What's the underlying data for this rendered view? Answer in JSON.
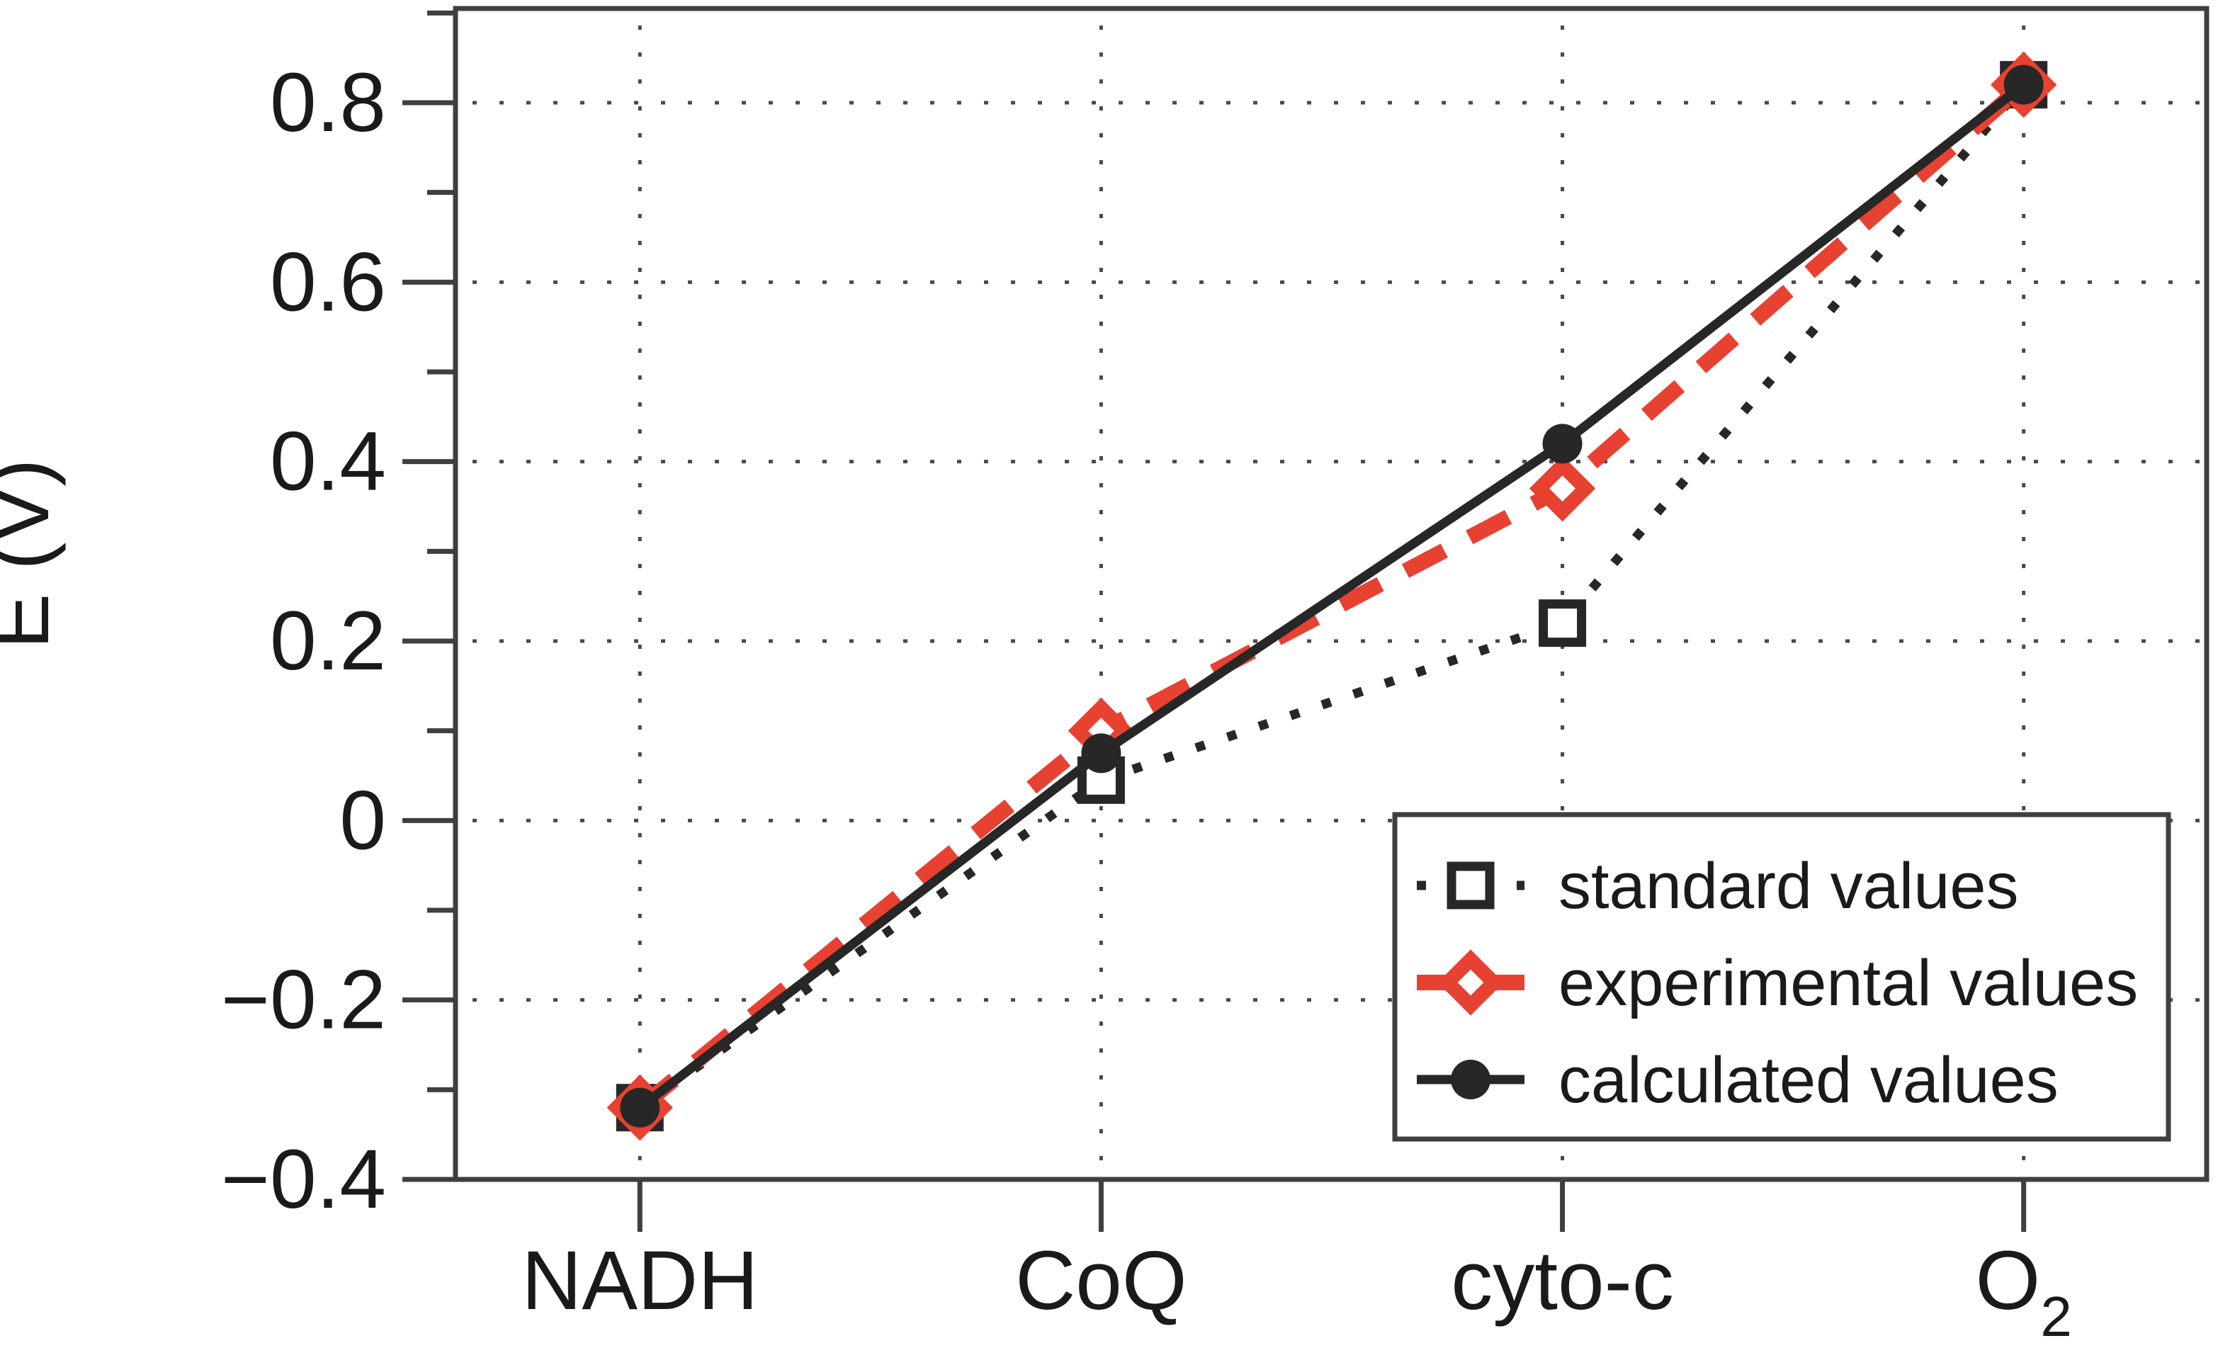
{
  "chart_data": {
    "type": "line",
    "title": "",
    "ylabel": "E (V)",
    "xlabel": "",
    "categories": [
      "NADH",
      "CoQ",
      "cyto-c",
      "O2"
    ],
    "categories_display": [
      {
        "text": "NADH",
        "sub": ""
      },
      {
        "text": "CoQ",
        "sub": ""
      },
      {
        "text": "cyto-c",
        "sub": ""
      },
      {
        "text": "O",
        "sub": "2"
      }
    ],
    "ylim": [
      -0.4,
      0.905
    ],
    "yticks_major": {
      "values": [
        0.8,
        0.6,
        0.4,
        0.2,
        0,
        -0.2,
        -0.4
      ],
      "labels": [
        "0.8",
        "0.6",
        "0.4",
        "0.2",
        "0",
        "−0.2",
        "−0.4"
      ]
    },
    "yticks_minor": [
      0.9,
      0.7,
      0.5,
      0.3,
      0.1,
      -0.1,
      -0.3
    ],
    "grid": {
      "style": "dotted",
      "horizontal_at": [
        0.8,
        0.6,
        0.4,
        0.2,
        0,
        -0.2
      ],
      "vertical_at_categories": true
    },
    "series": [
      {
        "name": "standard values",
        "values": [
          -0.32,
          0.045,
          0.22,
          0.82
        ],
        "color": "#272727",
        "line_style": "dotted",
        "marker": "open-square"
      },
      {
        "name": "experimental values",
        "values": [
          -0.32,
          0.1,
          0.37,
          0.82
        ],
        "color": "#e74132",
        "line_style": "dashed",
        "marker": "open-diamond"
      },
      {
        "name": "calculated values",
        "values": [
          -0.32,
          0.075,
          0.42,
          0.82
        ],
        "color": "#272727",
        "line_style": "solid",
        "marker": "filled-circle"
      }
    ],
    "legend": {
      "position": "lower right",
      "entries": [
        "standard values",
        "experimental values",
        "calculated values"
      ]
    },
    "colors": {
      "axis": "#3f3f3f",
      "grid": "#4a4a4a",
      "text": "#1a1a1a",
      "background": "#ffffff"
    }
  }
}
